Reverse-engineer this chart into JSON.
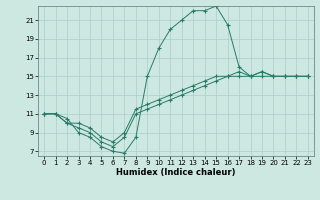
{
  "xlabel": "Humidex (Indice chaleur)",
  "bg_color": "#cce8e0",
  "grid_color": "#aacfc8",
  "line_color": "#2a7a6a",
  "xlim": [
    -0.5,
    23.5
  ],
  "ylim": [
    6.5,
    22.5
  ],
  "xticks": [
    0,
    1,
    2,
    3,
    4,
    5,
    6,
    7,
    8,
    9,
    10,
    11,
    12,
    13,
    14,
    15,
    16,
    17,
    18,
    19,
    20,
    21,
    22,
    23
  ],
  "yticks": [
    7,
    9,
    11,
    13,
    15,
    17,
    19,
    21
  ],
  "line1_x": [
    0,
    1,
    2,
    3,
    4,
    5,
    6,
    7,
    8,
    9,
    10,
    11,
    12,
    13,
    14,
    15,
    16,
    17,
    18,
    19,
    20,
    21,
    22,
    23
  ],
  "line1_y": [
    11,
    11,
    10.5,
    9,
    8.5,
    7.5,
    7,
    6.8,
    8.5,
    15,
    18,
    20,
    21,
    22,
    22,
    22.5,
    20.5,
    16,
    15,
    15,
    15,
    15,
    15,
    15
  ],
  "line2_x": [
    0,
    1,
    2,
    3,
    4,
    5,
    6,
    7,
    8,
    9,
    10,
    11,
    12,
    13,
    14,
    15,
    16,
    17,
    18,
    19,
    20,
    21,
    22,
    23
  ],
  "line2_y": [
    11,
    11,
    10,
    9.5,
    9,
    8,
    7.5,
    8.5,
    11,
    11.5,
    12,
    12.5,
    13,
    13.5,
    14,
    14.5,
    15,
    15,
    15,
    15.5,
    15,
    15,
    15,
    15
  ],
  "line3_x": [
    0,
    1,
    2,
    3,
    4,
    5,
    6,
    7,
    8,
    9,
    10,
    11,
    12,
    13,
    14,
    15,
    16,
    17,
    18,
    19,
    20,
    21,
    22,
    23
  ],
  "line3_y": [
    11,
    11,
    10,
    10,
    9.5,
    8.5,
    8,
    9,
    11.5,
    12,
    12.5,
    13,
    13.5,
    14,
    14.5,
    15,
    15,
    15.5,
    15,
    15.5,
    15,
    15,
    15,
    15
  ]
}
